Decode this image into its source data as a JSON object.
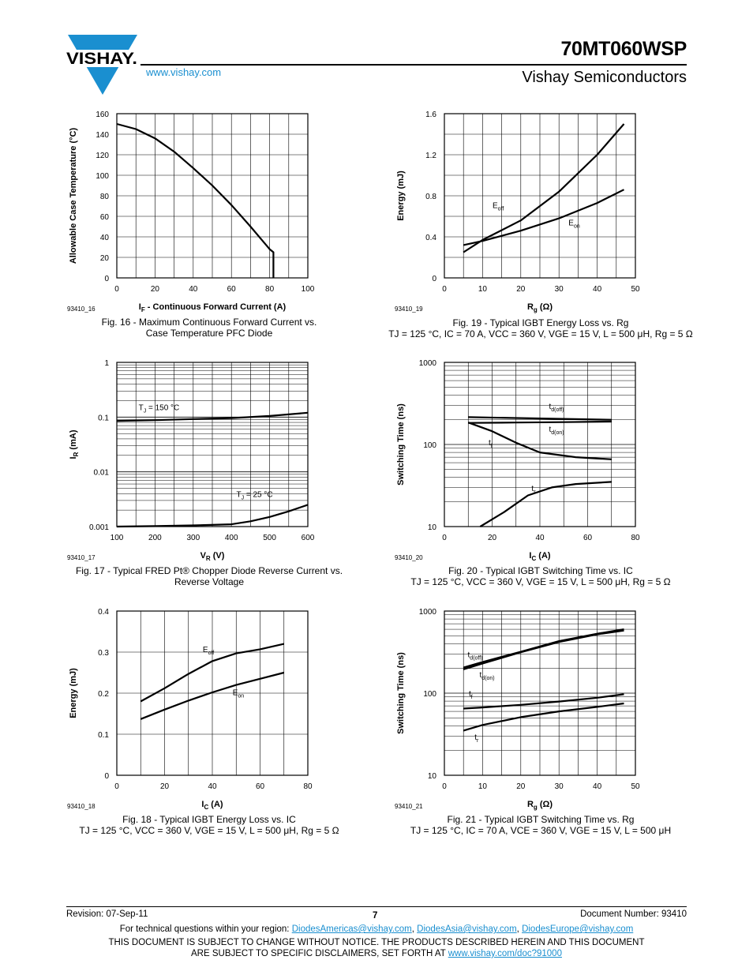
{
  "header": {
    "logo_text": "VISHAY.",
    "website": "www.vishay.com",
    "part_number": "70MT060WSP",
    "company": "Vishay Semiconductors"
  },
  "figures": [
    {
      "id": "fig16",
      "code": "93410_16",
      "caption_lines": [
        "Fig. 16 - Maximum Continuous Forward Current vs.",
        "Case Temperature PFC Diode"
      ]
    },
    {
      "id": "fig19",
      "code": "93410_19",
      "caption_lines": [
        "Fig. 19 - Typical IGBT Energy Loss vs. Rg",
        "TJ = 125 °C, IC = 70 A, VCC = 360 V, VGE = 15 V, L = 500 μH, Rg = 5 Ω"
      ]
    },
    {
      "id": "fig17",
      "code": "93410_17",
      "caption_lines": [
        "Fig. 17 - Typical FRED Pt® Chopper Diode Reverse Current vs.",
        "Reverse Voltage"
      ]
    },
    {
      "id": "fig20",
      "code": "93410_20",
      "caption_lines": [
        "Fig. 20 - Typical IGBT Switching Time vs. IC",
        "TJ = 125 °C, VCC = 360 V, VGE = 15 V, L = 500 μH, Rg = 5 Ω"
      ]
    },
    {
      "id": "fig18",
      "code": "93410_18",
      "caption_lines": [
        "Fig. 18 - Typical IGBT Energy Loss vs. IC",
        "TJ = 125 °C, VCC = 360 V, VGE = 15 V, L = 500 μH, Rg = 5 Ω"
      ]
    },
    {
      "id": "fig21",
      "code": "93410_21",
      "caption_lines": [
        "Fig. 21 - Typical IGBT Switching Time vs. Rg",
        "TJ = 125 °C, IC = 70 A, VCE = 360 V, VGE = 15 V, L = 500 μH"
      ]
    }
  ],
  "chart_data": [
    {
      "id": "fig16",
      "type": "line",
      "scale": "linear",
      "xlabel": "IF - Continuous Forward Current (A)",
      "ylabel": "Allowable Case Temperature (°C)",
      "xlim": [
        0,
        100
      ],
      "ylim": [
        0,
        160
      ],
      "xticks": [
        0,
        20,
        40,
        60,
        80,
        100
      ],
      "yticks": [
        0,
        20,
        40,
        60,
        80,
        100,
        120,
        140,
        160
      ],
      "series": [
        {
          "points": [
            [
              0,
              150
            ],
            [
              10,
              145
            ],
            [
              20,
              136
            ],
            [
              30,
              123
            ],
            [
              40,
              107
            ],
            [
              50,
              90
            ],
            [
              60,
              71
            ],
            [
              70,
              50
            ],
            [
              75,
              39
            ],
            [
              80,
              28
            ],
            [
              82,
              25
            ],
            [
              82,
              0
            ]
          ]
        }
      ],
      "annotations": []
    },
    {
      "id": "fig19",
      "type": "line",
      "scale": "linear",
      "xlabel": "Rg (Ω)",
      "ylabel": "Energy (mJ)",
      "xlim": [
        0,
        50
      ],
      "ylim": [
        0,
        1.6
      ],
      "xticks": [
        0,
        10,
        20,
        30,
        40,
        50
      ],
      "yticks": [
        0,
        0.4,
        0.8,
        1.2,
        1.6
      ],
      "series": [
        {
          "name": "Eoff",
          "points": [
            [
              5,
              0.25
            ],
            [
              10,
              0.37
            ],
            [
              20,
              0.56
            ],
            [
              30,
              0.84
            ],
            [
              40,
              1.2
            ],
            [
              47,
              1.5
            ]
          ]
        },
        {
          "name": "Eon",
          "points": [
            [
              5,
              0.32
            ],
            [
              10,
              0.36
            ],
            [
              20,
              0.46
            ],
            [
              30,
              0.58
            ],
            [
              40,
              0.73
            ],
            [
              47,
              0.86
            ]
          ]
        }
      ],
      "annotations": [
        {
          "text": "Eoff",
          "x": 12.6,
          "y": 0.68
        },
        {
          "text": "Eon",
          "x": 32.5,
          "y": 0.51
        }
      ]
    },
    {
      "id": "fig17",
      "type": "line",
      "scale": "log-y",
      "xlabel": "VR (V)",
      "ylabel": "IR (mA)",
      "xlim": [
        100,
        600
      ],
      "ylim": [
        0.001,
        1
      ],
      "xticks": [
        100,
        200,
        300,
        400,
        500,
        600
      ],
      "yticks": [
        0.001,
        0.01,
        0.1,
        1
      ],
      "series": [
        {
          "name": "TJ = 150 °C",
          "points": [
            [
              100,
              0.085
            ],
            [
              200,
              0.088
            ],
            [
              300,
              0.092
            ],
            [
              400,
              0.096
            ],
            [
              500,
              0.105
            ],
            [
              600,
              0.12
            ]
          ]
        },
        {
          "name": "TJ = 25 °C",
          "points": [
            [
              100,
              0.001
            ],
            [
              200,
              0.00102
            ],
            [
              300,
              0.00105
            ],
            [
              400,
              0.0011
            ],
            [
              450,
              0.00125
            ],
            [
              500,
              0.0015
            ],
            [
              550,
              0.0019
            ],
            [
              600,
              0.0025
            ]
          ]
        }
      ],
      "annotations": [
        {
          "text": "TJ = 150 °C",
          "x": 157,
          "y": 0.135
        },
        {
          "text": "TJ = 25 °C",
          "x": 413,
          "y": 0.0035
        }
      ]
    },
    {
      "id": "fig20",
      "type": "line",
      "scale": "log-y",
      "xlabel": "IC (A)",
      "ylabel": "Switching Time (ns)",
      "xlim": [
        0,
        80
      ],
      "ylim": [
        10,
        1000
      ],
      "xticks": [
        0,
        20,
        40,
        60,
        80
      ],
      "yticks": [
        10,
        100,
        1000
      ],
      "series": [
        {
          "name": "td(off)",
          "points": [
            [
              10,
              215
            ],
            [
              30,
              210
            ],
            [
              50,
              205
            ],
            [
              70,
              200
            ]
          ]
        },
        {
          "name": "td(on)",
          "points": [
            [
              10,
              183
            ],
            [
              30,
              185
            ],
            [
              50,
              187
            ],
            [
              70,
              190
            ]
          ]
        },
        {
          "name": "tf",
          "points": [
            [
              10,
              185
            ],
            [
              20,
              145
            ],
            [
              30,
              105
            ],
            [
              40,
              80
            ],
            [
              55,
              70
            ],
            [
              70,
              66
            ]
          ]
        },
        {
          "name": "tr",
          "points": [
            [
              15,
              10
            ],
            [
              25,
              15
            ],
            [
              35,
              24
            ],
            [
              45,
              30
            ],
            [
              55,
              33
            ],
            [
              70,
              35
            ]
          ]
        }
      ],
      "annotations": [
        {
          "text": "td(off)",
          "x": 43.8,
          "y": 270
        },
        {
          "text": "td(on)",
          "x": 43.8,
          "y": 142
        },
        {
          "text": "tf",
          "x": 18.5,
          "y": 98
        },
        {
          "text": "tr",
          "x": 36.5,
          "y": 27
        }
      ]
    },
    {
      "id": "fig18",
      "type": "line",
      "scale": "linear",
      "xlabel": "IC (A)",
      "ylabel": "Energy (mJ)",
      "xlim": [
        0,
        80
      ],
      "ylim": [
        0,
        0.4
      ],
      "xticks": [
        0,
        20,
        40,
        60,
        80
      ],
      "yticks": [
        0,
        0.1,
        0.2,
        0.3,
        0.4
      ],
      "series": [
        {
          "name": "Eoff",
          "points": [
            [
              10,
              0.18
            ],
            [
              20,
              0.212
            ],
            [
              30,
              0.247
            ],
            [
              40,
              0.278
            ],
            [
              50,
              0.297
            ],
            [
              60,
              0.307
            ],
            [
              70,
              0.32
            ]
          ]
        },
        {
          "name": "Eon",
          "points": [
            [
              10,
              0.137
            ],
            [
              20,
              0.16
            ],
            [
              30,
              0.182
            ],
            [
              40,
              0.202
            ],
            [
              50,
              0.22
            ],
            [
              60,
              0.235
            ],
            [
              70,
              0.25
            ]
          ]
        }
      ],
      "annotations": [
        {
          "text": "Eoff",
          "x": 36,
          "y": 0.3
        },
        {
          "text": "Eon",
          "x": 48.5,
          "y": 0.195
        }
      ]
    },
    {
      "id": "fig21",
      "type": "line",
      "scale": "log-y",
      "xlabel": "Rg (Ω)",
      "ylabel": "Switching Time (ns)",
      "xlim": [
        0,
        50
      ],
      "ylim": [
        10,
        1000
      ],
      "xticks": [
        0,
        10,
        20,
        30,
        40,
        50
      ],
      "yticks": [
        10,
        100,
        1000
      ],
      "series": [
        {
          "name": "td(off)",
          "points": [
            [
              5,
              205
            ],
            [
              10,
              240
            ],
            [
              20,
              320
            ],
            [
              30,
              430
            ],
            [
              40,
              530
            ],
            [
              47,
              600
            ]
          ]
        },
        {
          "name": "td(on)",
          "points": [
            [
              5,
              195
            ],
            [
              10,
              230
            ],
            [
              20,
              315
            ],
            [
              30,
              420
            ],
            [
              40,
              520
            ],
            [
              47,
              580
            ]
          ]
        },
        {
          "name": "tf",
          "points": [
            [
              5,
              65
            ],
            [
              10,
              67
            ],
            [
              20,
              72
            ],
            [
              30,
              79
            ],
            [
              40,
              88
            ],
            [
              47,
              97
            ]
          ]
        },
        {
          "name": "tr",
          "points": [
            [
              5,
              35
            ],
            [
              10,
              41
            ],
            [
              20,
              51
            ],
            [
              30,
              60
            ],
            [
              40,
              68
            ],
            [
              47,
              75
            ]
          ]
        }
      ],
      "annotations": [
        {
          "text": "td(off)",
          "x": 6.1,
          "y": 275
        },
        {
          "text": "td(on)",
          "x": 9.2,
          "y": 155
        },
        {
          "text": "tf",
          "x": 6.4,
          "y": 92
        },
        {
          "text": "tr",
          "x": 7.9,
          "y": 27
        }
      ]
    }
  ],
  "footer": {
    "revision": "Revision: 07-Sep-11",
    "page": "7",
    "document_number": "Document Number: 93410",
    "contact_prefix": "For technical questions within your region: ",
    "emails": [
      "DiodesAmericas@vishay.com",
      "DiodesAsia@vishay.com",
      "DiodesEurope@vishay.com"
    ],
    "disclaimer_line1": "THIS DOCUMENT IS SUBJECT TO CHANGE WITHOUT NOTICE. THE PRODUCTS DESCRIBED HEREIN AND THIS DOCUMENT",
    "disclaimer_line2_prefix": "ARE SUBJECT TO SPECIFIC DISCLAIMERS, SET FORTH AT ",
    "disclaimer_link": "www.vishay.com/doc?91000"
  },
  "colors": {
    "link": "#1a8fd0",
    "logo_blue": "#1a8fd0",
    "ink": "#000000"
  }
}
